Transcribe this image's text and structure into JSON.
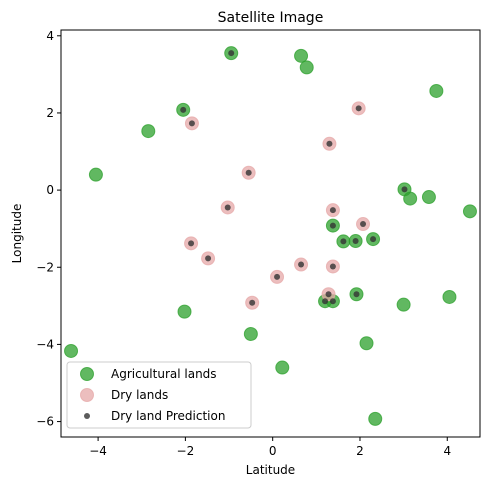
{
  "chart_data": {
    "type": "scatter",
    "title": "Satellite Image",
    "xlabel": "Latitude",
    "ylabel": "Longitude",
    "xlim": [
      -4.85,
      4.75
    ],
    "ylim": [
      -6.4,
      4.15
    ],
    "xticks": [
      -4,
      -2,
      0,
      2,
      4
    ],
    "yticks": [
      -6,
      -4,
      -2,
      0,
      2,
      4
    ],
    "grid": false,
    "legend_position": "lower-left",
    "series": [
      {
        "name": "Agricultural lands",
        "color": "#2ca02c",
        "alpha": 0.75,
        "marker": "large-circle",
        "points": [
          [
            -0.95,
            3.55
          ],
          [
            0.65,
            3.48
          ],
          [
            0.78,
            3.18
          ],
          [
            3.75,
            2.57
          ],
          [
            -2.05,
            2.08
          ],
          [
            -2.85,
            1.53
          ],
          [
            -4.05,
            0.4
          ],
          [
            3.02,
            0.02
          ],
          [
            3.15,
            -0.22
          ],
          [
            3.58,
            -0.18
          ],
          [
            4.52,
            -0.55
          ],
          [
            1.38,
            -0.92
          ],
          [
            1.62,
            -1.33
          ],
          [
            1.9,
            -1.32
          ],
          [
            2.3,
            -1.27
          ],
          [
            1.92,
            -2.7
          ],
          [
            1.2,
            -2.88
          ],
          [
            1.38,
            -2.88
          ],
          [
            3.0,
            -2.97
          ],
          [
            4.05,
            -2.77
          ],
          [
            -2.02,
            -3.15
          ],
          [
            -0.5,
            -3.73
          ],
          [
            2.15,
            -3.97
          ],
          [
            -4.62,
            -4.17
          ],
          [
            0.22,
            -4.6
          ],
          [
            2.35,
            -5.93
          ]
        ]
      },
      {
        "name": "Dry lands",
        "color": "#e6a8a8",
        "alpha": 0.75,
        "marker": "large-circle",
        "points": [
          [
            1.97,
            2.12
          ],
          [
            -1.85,
            1.73
          ],
          [
            1.3,
            1.2
          ],
          [
            -0.55,
            0.45
          ],
          [
            -1.03,
            -0.45
          ],
          [
            1.38,
            -0.52
          ],
          [
            2.07,
            -0.88
          ],
          [
            -1.87,
            -1.38
          ],
          [
            -1.48,
            -1.77
          ],
          [
            0.65,
            -1.93
          ],
          [
            1.38,
            -1.98
          ],
          [
            0.1,
            -2.25
          ],
          [
            1.28,
            -2.7
          ],
          [
            -0.47,
            -2.92
          ]
        ]
      },
      {
        "name": "Dry land Prediction",
        "color": "#333333",
        "alpha": 0.8,
        "marker": "small-dot",
        "points": [
          [
            -0.95,
            3.55
          ],
          [
            -2.05,
            2.08
          ],
          [
            1.97,
            2.12
          ],
          [
            -1.85,
            1.73
          ],
          [
            1.3,
            1.2
          ],
          [
            -0.55,
            0.45
          ],
          [
            3.02,
            0.02
          ],
          [
            -1.03,
            -0.45
          ],
          [
            1.38,
            -0.52
          ],
          [
            2.07,
            -0.88
          ],
          [
            1.38,
            -0.92
          ],
          [
            1.62,
            -1.33
          ],
          [
            1.9,
            -1.32
          ],
          [
            2.3,
            -1.27
          ],
          [
            -1.87,
            -1.38
          ],
          [
            -1.48,
            -1.77
          ],
          [
            0.65,
            -1.93
          ],
          [
            1.38,
            -1.98
          ],
          [
            0.1,
            -2.25
          ],
          [
            1.28,
            -2.7
          ],
          [
            1.92,
            -2.7
          ],
          [
            1.2,
            -2.88
          ],
          [
            1.38,
            -2.88
          ],
          [
            -0.47,
            -2.92
          ]
        ]
      }
    ]
  }
}
